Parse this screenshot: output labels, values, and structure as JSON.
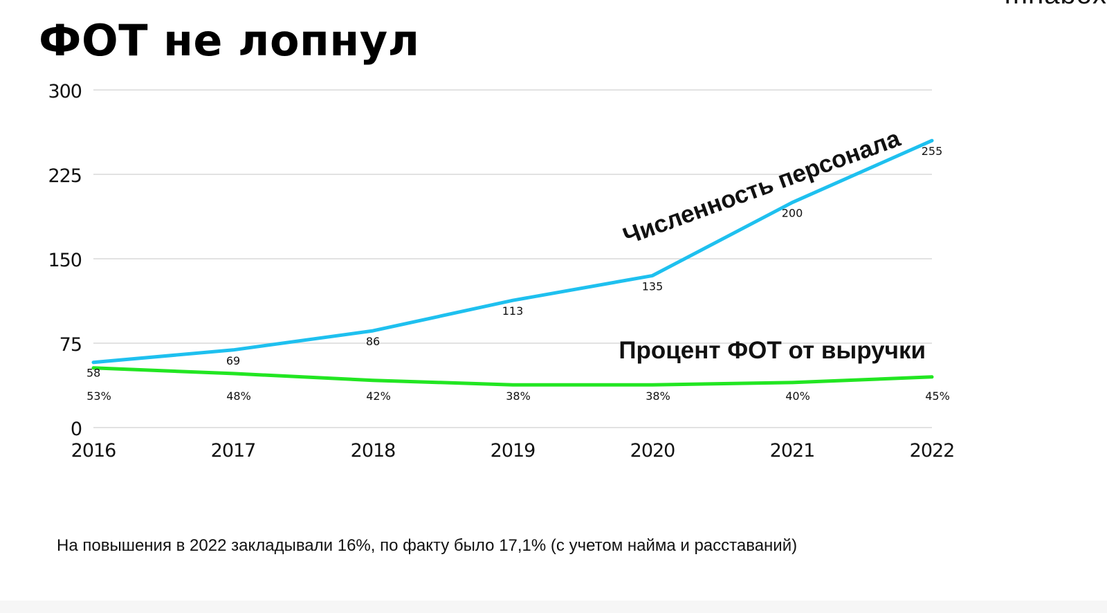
{
  "slide": {
    "title": "ФОТ не лопнул",
    "brand": "mnabox",
    "footnote": "На повышения в 2022 закладывали 16%, по факту было 17,1% (с учетом найма и расставаний)"
  },
  "colors": {
    "headcount_line": "#1ec0ef",
    "payroll_line": "#22e622",
    "gridline": "#d9d9d9",
    "text": "#111111"
  },
  "chart_data": {
    "type": "line",
    "x": [
      "2016",
      "2017",
      "2018",
      "2019",
      "2020",
      "2021",
      "2022"
    ],
    "yticks": [
      "0",
      "75",
      "150",
      "225",
      "300"
    ],
    "ylim": [
      0,
      300
    ],
    "grid": true,
    "series": [
      {
        "name": "Численность персонала",
        "values": [
          58,
          69,
          86,
          113,
          135,
          200,
          255
        ],
        "labels": [
          "58",
          "69",
          "86",
          "113",
          "135",
          "200",
          "255"
        ],
        "color": "#1ec0ef"
      },
      {
        "name": "Процент ФОТ от выручки",
        "values": [
          53,
          48,
          42,
          38,
          38,
          40,
          45
        ],
        "labels": [
          "53%",
          "48%",
          "42%",
          "38%",
          "38%",
          "40%",
          "45%"
        ],
        "color": "#22e622"
      }
    ]
  }
}
